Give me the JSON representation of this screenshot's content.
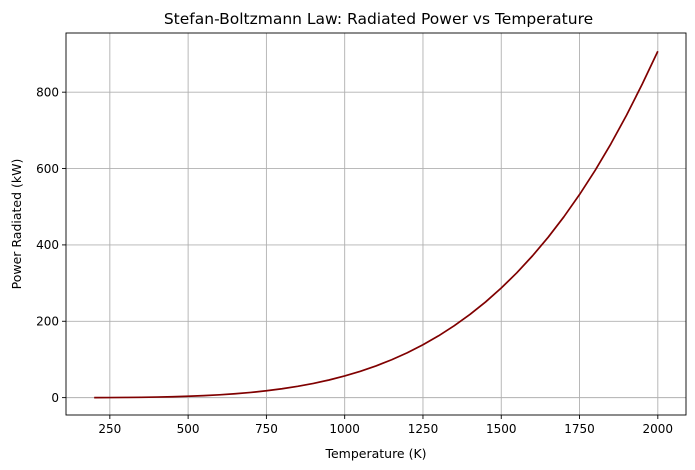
{
  "chart_data": {
    "type": "line",
    "title": "Stefan-Boltzmann Law: Radiated Power vs Temperature",
    "xlabel": "Temperature (K)",
    "ylabel": "Power Radiated (kW)",
    "xlim": [
      110,
      2090
    ],
    "ylim": [
      -45.5,
      955
    ],
    "xticks": [
      250,
      500,
      750,
      1000,
      1250,
      1500,
      1750,
      2000
    ],
    "yticks": [
      0,
      200,
      400,
      600,
      800
    ],
    "grid": true,
    "legend": "none",
    "color": "#800000",
    "x": [
      200,
      250,
      300,
      350,
      400,
      450,
      500,
      550,
      600,
      650,
      700,
      750,
      800,
      850,
      900,
      950,
      1000,
      1050,
      1100,
      1150,
      1200,
      1250,
      1300,
      1350,
      1400,
      1450,
      1500,
      1550,
      1600,
      1650,
      1700,
      1750,
      1800,
      1850,
      1900,
      1950,
      2000
    ],
    "y": [
      0.09,
      0.22,
      0.46,
      0.85,
      1.45,
      2.33,
      3.54,
      5.19,
      7.35,
      10.12,
      13.61,
      17.94,
      23.22,
      29.6,
      37.2,
      46.18,
      56.7,
      68.92,
      83.01,
      99.16,
      117.57,
      138.43,
      161.95,
      188.34,
      217.83,
      250.65,
      287.04,
      327.25,
      371.56,
      420.24,
      473.57,
      531.87,
      595.41,
      664.53,
      739.56,
      820.8,
      907.2
    ]
  }
}
